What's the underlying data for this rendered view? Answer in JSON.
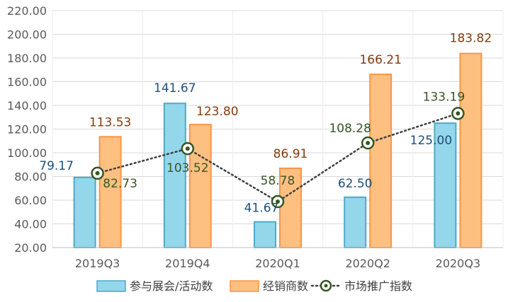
{
  "chart_data": {
    "type": "bar",
    "categories": [
      "2019Q3",
      "2019Q4",
      "2020Q1",
      "2020Q2",
      "2020Q3"
    ],
    "series": [
      {
        "name": "参与展会/活动数",
        "kind": "bar",
        "color": "#94d6ea",
        "edge": "#4bacc6",
        "values": [
          79.17,
          141.67,
          41.67,
          62.5,
          125.0
        ],
        "labels": [
          "79.17",
          "141.67",
          "41.67",
          "62.50",
          "125.00"
        ]
      },
      {
        "name": "经销商数",
        "kind": "bar",
        "color": "#fdc081",
        "edge": "#f79646",
        "values": [
          113.53,
          123.8,
          86.91,
          166.21,
          183.82
        ],
        "labels": [
          "113.53",
          "123.80",
          "86.91",
          "166.21",
          "183.82"
        ]
      },
      {
        "name": "市场推广指数",
        "kind": "line",
        "color": "#375623",
        "values": [
          82.73,
          103.52,
          58.78,
          108.28,
          133.19
        ],
        "labels": [
          "82.73",
          "103.52",
          "58.78",
          "108.28",
          "133.19"
        ]
      }
    ],
    "yticks": [
      "20.00",
      "40.00",
      "60.00",
      "80.00",
      "100.00",
      "120.00",
      "140.00",
      "160.00",
      "180.00",
      "200.00",
      "220.00"
    ],
    "ylim": [
      20,
      220
    ],
    "grid": true,
    "legend_position": "bottom"
  }
}
